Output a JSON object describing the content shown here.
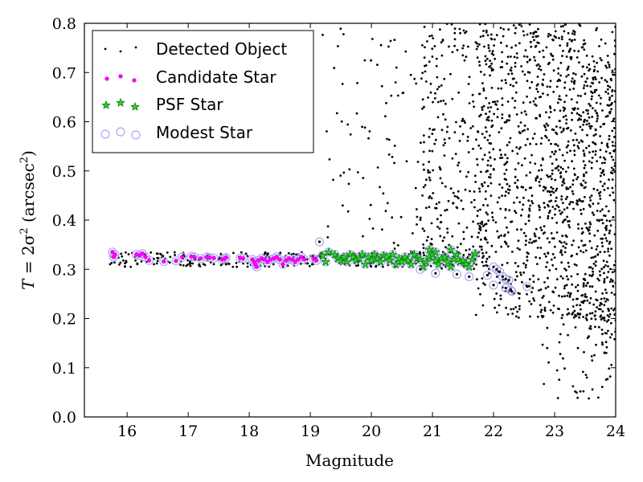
{
  "chart_data": {
    "type": "scatter",
    "title": "",
    "xlabel": "Magnitude",
    "ylabel": "T=2σ² (arcsec²)",
    "ylabel_parts": {
      "pre": "T",
      "mid": " = 2σ",
      "sup1": "2",
      "unit_pre": " (arcsec",
      "sup2": "2",
      "unit_post": ")"
    },
    "xlim": [
      15.3,
      24
    ],
    "ylim": [
      0.0,
      0.8
    ],
    "xticks": [
      "16",
      "17",
      "18",
      "19",
      "20",
      "21",
      "22",
      "23",
      "24"
    ],
    "yticks": [
      "0.0",
      "0.1",
      "0.2",
      "0.3",
      "0.4",
      "0.5",
      "0.6",
      "0.7",
      "0.8"
    ],
    "grid": false,
    "legend_position": "top-left",
    "series": [
      {
        "name": "Detected Object",
        "marker": "dot",
        "color": "#000000"
      },
      {
        "name": "Candidate Star",
        "marker": "circle",
        "color": "#ff00ff",
        "points": [
          [
            15.76,
            0.335
          ],
          [
            15.78,
            0.325
          ],
          [
            15.8,
            0.33
          ],
          [
            16.15,
            0.33
          ],
          [
            16.2,
            0.328
          ],
          [
            16.25,
            0.332
          ],
          [
            16.3,
            0.325
          ],
          [
            16.36,
            0.318
          ],
          [
            16.6,
            0.316
          ],
          [
            16.8,
            0.317
          ],
          [
            16.9,
            0.325
          ],
          [
            17.05,
            0.326
          ],
          [
            17.1,
            0.325
          ],
          [
            17.2,
            0.322
          ],
          [
            17.3,
            0.325
          ],
          [
            17.35,
            0.324
          ],
          [
            17.42,
            0.323
          ],
          [
            17.55,
            0.32
          ],
          [
            17.6,
            0.322
          ],
          [
            17.62,
            0.324
          ],
          [
            17.85,
            0.323
          ],
          [
            17.9,
            0.322
          ],
          [
            18.05,
            0.32
          ],
          [
            18.08,
            0.315
          ],
          [
            18.1,
            0.31
          ],
          [
            18.12,
            0.305
          ],
          [
            18.15,
            0.318
          ],
          [
            18.2,
            0.322
          ],
          [
            18.25,
            0.32
          ],
          [
            18.3,
            0.315
          ],
          [
            18.35,
            0.32
          ],
          [
            18.4,
            0.322
          ],
          [
            18.45,
            0.325
          ],
          [
            18.5,
            0.32
          ],
          [
            18.55,
            0.31
          ],
          [
            18.6,
            0.318
          ],
          [
            18.65,
            0.322
          ],
          [
            18.7,
            0.32
          ],
          [
            18.75,
            0.315
          ],
          [
            18.8,
            0.32
          ],
          [
            18.85,
            0.325
          ],
          [
            18.9,
            0.32
          ],
          [
            19.05,
            0.322
          ],
          [
            19.1,
            0.318
          ]
        ]
      },
      {
        "name": "PSF Star",
        "marker": "star",
        "color": "#008000",
        "points": [
          [
            19.2,
            0.328
          ],
          [
            19.25,
            0.315
          ],
          [
            19.3,
            0.335
          ],
          [
            19.4,
            0.33
          ],
          [
            19.45,
            0.322
          ],
          [
            19.5,
            0.318
          ],
          [
            19.55,
            0.325
          ],
          [
            19.6,
            0.315
          ],
          [
            19.65,
            0.33
          ],
          [
            19.7,
            0.325
          ],
          [
            19.75,
            0.318
          ],
          [
            19.8,
            0.322
          ],
          [
            19.85,
            0.33
          ],
          [
            19.9,
            0.31
          ],
          [
            19.95,
            0.325
          ],
          [
            20.0,
            0.318
          ],
          [
            20.05,
            0.33
          ],
          [
            20.1,
            0.322
          ],
          [
            20.15,
            0.315
          ],
          [
            20.2,
            0.328
          ],
          [
            20.25,
            0.325
          ],
          [
            20.3,
            0.318
          ],
          [
            20.35,
            0.33
          ],
          [
            20.4,
            0.31
          ],
          [
            20.45,
            0.322
          ],
          [
            20.5,
            0.315
          ],
          [
            20.55,
            0.325
          ],
          [
            20.6,
            0.318
          ],
          [
            20.65,
            0.31
          ],
          [
            20.7,
            0.33
          ],
          [
            20.75,
            0.322
          ],
          [
            20.8,
            0.32
          ],
          [
            20.85,
            0.305
          ],
          [
            20.9,
            0.315
          ],
          [
            20.95,
            0.325
          ],
          [
            21.0,
            0.33
          ],
          [
            21.05,
            0.318
          ],
          [
            21.1,
            0.31
          ],
          [
            21.15,
            0.322
          ],
          [
            21.2,
            0.325
          ],
          [
            21.25,
            0.315
          ],
          [
            21.3,
            0.305
          ],
          [
            21.35,
            0.32
          ],
          [
            21.4,
            0.33
          ],
          [
            21.45,
            0.315
          ],
          [
            21.5,
            0.318
          ],
          [
            21.55,
            0.31
          ],
          [
            21.6,
            0.305
          ],
          [
            21.65,
            0.32
          ],
          [
            21.7,
            0.332
          ],
          [
            20.95,
            0.34
          ],
          [
            21.05,
            0.335
          ],
          [
            21.3,
            0.34
          ]
        ]
      },
      {
        "name": "Modest Star",
        "marker": "open-circle",
        "color": "#aaaaee",
        "points": [
          [
            19.15,
            0.356
          ],
          [
            20.8,
            0.3
          ],
          [
            21.05,
            0.292
          ],
          [
            21.4,
            0.29
          ],
          [
            21.6,
            0.285
          ],
          [
            21.9,
            0.288
          ],
          [
            22.0,
            0.305
          ],
          [
            22.05,
            0.3
          ],
          [
            22.1,
            0.295
          ],
          [
            22.15,
            0.285
          ],
          [
            22.2,
            0.28
          ],
          [
            22.25,
            0.278
          ],
          [
            22.28,
            0.258
          ],
          [
            22.3,
            0.255
          ],
          [
            22.55,
            0.265
          ],
          [
            22.0,
            0.268
          ],
          [
            22.2,
            0.262
          ]
        ]
      }
    ]
  },
  "legend": [
    {
      "label": "Detected Object"
    },
    {
      "label": "Candidate Star"
    },
    {
      "label": "PSF Star"
    },
    {
      "label": "Modest Star"
    }
  ]
}
